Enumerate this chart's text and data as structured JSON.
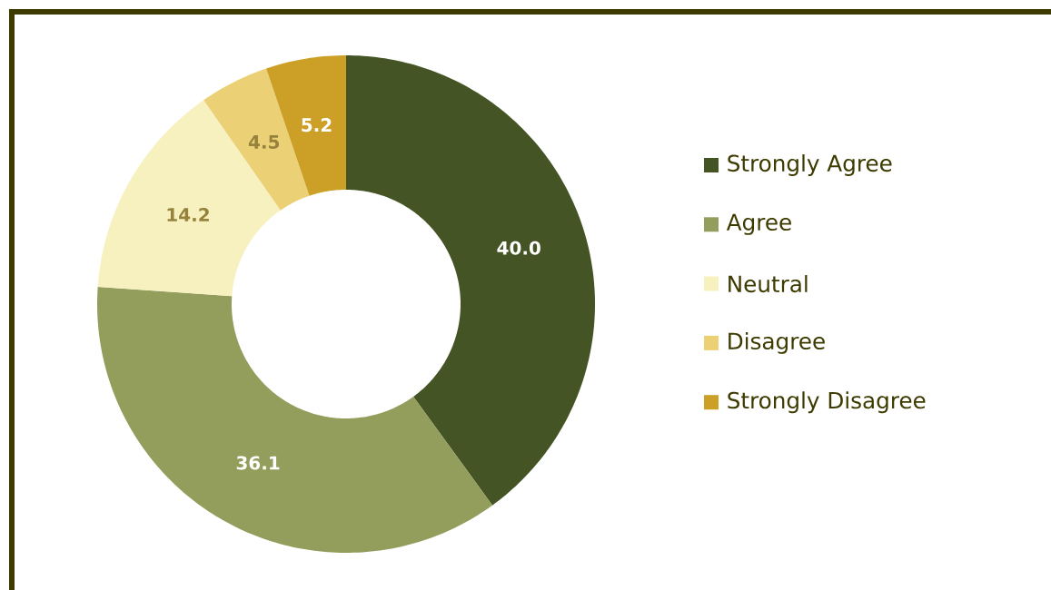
{
  "chart_data": {
    "type": "donut",
    "categories": [
      "Strongly Agree",
      "Agree",
      "Neutral",
      "Disagree",
      "Strongly Disagree"
    ],
    "values": [
      40.0,
      36.1,
      14.2,
      4.5,
      5.2
    ],
    "colors": [
      "#445425",
      "#949e5c",
      "#f7f1bf",
      "#ecd075",
      "#cc9f27"
    ],
    "value_labels": [
      "40.0",
      "36.1",
      "14.2",
      "4.5",
      "5.2"
    ],
    "legend": "right"
  }
}
